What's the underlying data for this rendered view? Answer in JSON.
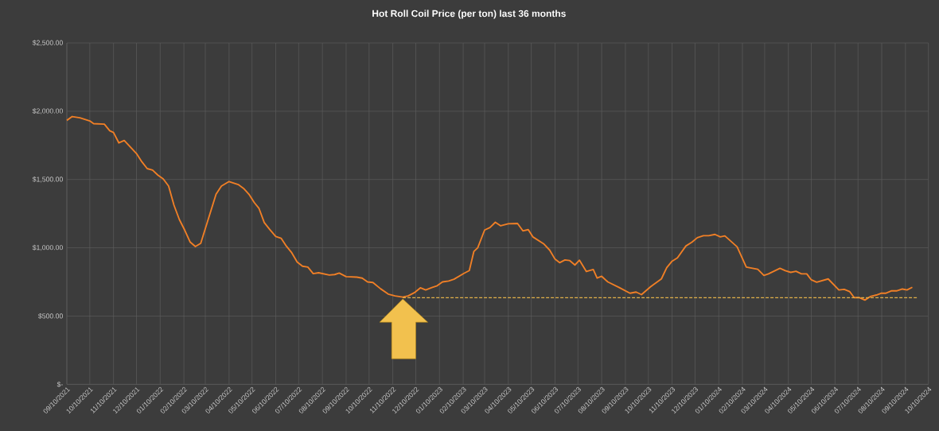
{
  "chart_data": {
    "type": "line",
    "title": "Hot Roll Coil Price (per ton) last 36 months",
    "xlim": [
      "2021-09-10",
      "2024-10-10"
    ],
    "ylim": [
      0,
      2500
    ],
    "yticks": [
      {
        "value": 0,
        "label": "$-"
      },
      {
        "value": 500,
        "label": "$500.00"
      },
      {
        "value": 1000,
        "label": "$1,000.00"
      },
      {
        "value": 1500,
        "label": "$1,500.00"
      },
      {
        "value": 2000,
        "label": "$2,000.00"
      },
      {
        "value": 2500,
        "label": "$2,500.00"
      }
    ],
    "xticks": [
      {
        "value": "2021-09-10",
        "label": "09/10/2021"
      },
      {
        "value": "2021-10-10",
        "label": "10/10/2021"
      },
      {
        "value": "2021-11-10",
        "label": "11/10/2021"
      },
      {
        "value": "2021-12-10",
        "label": "12/10/2021"
      },
      {
        "value": "2022-01-10",
        "label": "01/10/2022"
      },
      {
        "value": "2022-02-10",
        "label": "02/10/2022"
      },
      {
        "value": "2022-03-10",
        "label": "03/10/2022"
      },
      {
        "value": "2022-04-10",
        "label": "04/10/2022"
      },
      {
        "value": "2022-05-10",
        "label": "05/10/2022"
      },
      {
        "value": "2022-06-10",
        "label": "06/10/2022"
      },
      {
        "value": "2022-07-10",
        "label": "07/10/2022"
      },
      {
        "value": "2022-08-10",
        "label": "08/10/2022"
      },
      {
        "value": "2022-09-10",
        "label": "09/10/2022"
      },
      {
        "value": "2022-10-10",
        "label": "10/10/2022"
      },
      {
        "value": "2022-11-10",
        "label": "11/10/2022"
      },
      {
        "value": "2022-12-10",
        "label": "12/10/2022"
      },
      {
        "value": "2023-01-10",
        "label": "01/10/2023"
      },
      {
        "value": "2023-02-10",
        "label": "02/10/2023"
      },
      {
        "value": "2023-03-10",
        "label": "03/10/2023"
      },
      {
        "value": "2023-04-10",
        "label": "04/10/2023"
      },
      {
        "value": "2023-05-10",
        "label": "05/10/2023"
      },
      {
        "value": "2023-06-10",
        "label": "06/10/2023"
      },
      {
        "value": "2023-07-10",
        "label": "07/10/2023"
      },
      {
        "value": "2023-08-10",
        "label": "08/10/2023"
      },
      {
        "value": "2023-09-10",
        "label": "09/10/2023"
      },
      {
        "value": "2023-10-10",
        "label": "10/10/2023"
      },
      {
        "value": "2023-11-10",
        "label": "11/10/2023"
      },
      {
        "value": "2023-12-10",
        "label": "12/10/2023"
      },
      {
        "value": "2024-01-10",
        "label": "01/10/2024"
      },
      {
        "value": "2024-02-10",
        "label": "02/10/2024"
      },
      {
        "value": "2024-03-10",
        "label": "03/10/2024"
      },
      {
        "value": "2024-04-10",
        "label": "04/10/2024"
      },
      {
        "value": "2024-05-10",
        "label": "05/10/2024"
      },
      {
        "value": "2024-06-10",
        "label": "06/10/2024"
      },
      {
        "value": "2024-07-10",
        "label": "07/10/2024"
      },
      {
        "value": "2024-08-10",
        "label": "08/10/2024"
      },
      {
        "value": "2024-09-10",
        "label": "09/10/2024"
      },
      {
        "value": "2024-10-10",
        "label": "10/10/2024"
      }
    ],
    "grid": true,
    "series": [
      {
        "color": "#f07f26",
        "line_style": "solid",
        "x": [
          "2021-09-10",
          "2021-09-17",
          "2021-09-27",
          "2021-10-10",
          "2021-10-15",
          "2021-10-29",
          "2021-11-05",
          "2021-11-10",
          "2021-11-17",
          "2021-11-24",
          "2021-12-10",
          "2021-12-17",
          "2021-12-24",
          "2021-12-31",
          "2022-01-07",
          "2022-01-14",
          "2022-01-21",
          "2022-01-28",
          "2022-02-04",
          "2022-02-11",
          "2022-02-18",
          "2022-02-25",
          "2022-03-04",
          "2022-03-24",
          "2022-03-31",
          "2022-04-10",
          "2022-04-22",
          "2022-04-29",
          "2022-05-06",
          "2022-05-13",
          "2022-05-19",
          "2022-05-26",
          "2022-06-02",
          "2022-06-10",
          "2022-06-17",
          "2022-06-24",
          "2022-07-01",
          "2022-07-08",
          "2022-07-15",
          "2022-07-22",
          "2022-07-29",
          "2022-08-05",
          "2022-08-19",
          "2022-08-26",
          "2022-09-01",
          "2022-09-10",
          "2022-09-24",
          "2022-10-01",
          "2022-10-08",
          "2022-10-15",
          "2022-10-25",
          "2022-11-04",
          "2022-11-13",
          "2022-11-23",
          "2022-11-30",
          "2022-12-09",
          "2022-12-16",
          "2022-12-23",
          "2022-12-31",
          "2023-01-07",
          "2023-01-14",
          "2023-01-22",
          "2023-01-29",
          "2023-02-11",
          "2023-02-18",
          "2023-02-24",
          "2023-03-01",
          "2023-03-10",
          "2023-03-17",
          "2023-03-24",
          "2023-03-31",
          "2023-04-10",
          "2023-04-22",
          "2023-04-29",
          "2023-05-06",
          "2023-05-12",
          "2023-05-26",
          "2023-06-03",
          "2023-06-10",
          "2023-06-16",
          "2023-06-23",
          "2023-06-29",
          "2023-07-06",
          "2023-07-12",
          "2023-07-21",
          "2023-07-30",
          "2023-08-04",
          "2023-08-10",
          "2023-08-18",
          "2023-09-02",
          "2023-09-16",
          "2023-09-24",
          "2023-10-01",
          "2023-10-13",
          "2023-10-27",
          "2023-11-03",
          "2023-11-10",
          "2023-11-17",
          "2023-11-28",
          "2023-12-06",
          "2023-12-13",
          "2023-12-21",
          "2023-12-28",
          "2024-01-05",
          "2024-01-12",
          "2024-01-18",
          "2024-02-03",
          "2024-02-15",
          "2024-03-01",
          "2024-03-09",
          "2024-03-15",
          "2024-03-30",
          "2024-04-06",
          "2024-04-13",
          "2024-04-20",
          "2024-04-27",
          "2024-05-04",
          "2024-05-10",
          "2024-05-17",
          "2024-06-01",
          "2024-06-15",
          "2024-06-22",
          "2024-06-29",
          "2024-07-05",
          "2024-07-12",
          "2024-07-19",
          "2024-07-26",
          "2024-08-03",
          "2024-08-09",
          "2024-08-15",
          "2024-08-23",
          "2024-08-30",
          "2024-09-06",
          "2024-09-12",
          "2024-09-19"
        ],
        "values": [
          1933,
          1961,
          1952,
          1929,
          1909,
          1905,
          1857,
          1844,
          1768,
          1786,
          1690,
          1630,
          1580,
          1569,
          1532,
          1504,
          1452,
          1312,
          1207,
          1130,
          1043,
          1009,
          1033,
          1392,
          1452,
          1485,
          1463,
          1435,
          1392,
          1331,
          1290,
          1185,
          1135,
          1083,
          1070,
          1011,
          963,
          896,
          865,
          859,
          811,
          817,
          800,
          804,
          815,
          789,
          785,
          778,
          750,
          746,
          700,
          661,
          648,
          639,
          648,
          674,
          707,
          691,
          709,
          722,
          750,
          757,
          770,
          813,
          833,
          974,
          1000,
          1130,
          1148,
          1187,
          1161,
          1176,
          1178,
          1124,
          1133,
          1080,
          1030,
          983,
          917,
          891,
          911,
          907,
          874,
          909,
          826,
          841,
          778,
          791,
          750,
          709,
          667,
          676,
          657,
          715,
          772,
          854,
          902,
          926,
          1013,
          1041,
          1074,
          1089,
          1089,
          1098,
          1080,
          1087,
          1007,
          859,
          843,
          798,
          809,
          850,
          833,
          820,
          828,
          809,
          809,
          765,
          748,
          772,
          691,
          696,
          680,
          635,
          635,
          617,
          643,
          654,
          667,
          667,
          685,
          685,
          698,
          691,
          711
        ]
      },
      {
        "color": "#e0b04a",
        "line_style": "dashed",
        "x": [
          "2022-11-23",
          "2024-09-26"
        ],
        "values": [
          635,
          635
        ]
      }
    ]
  }
}
